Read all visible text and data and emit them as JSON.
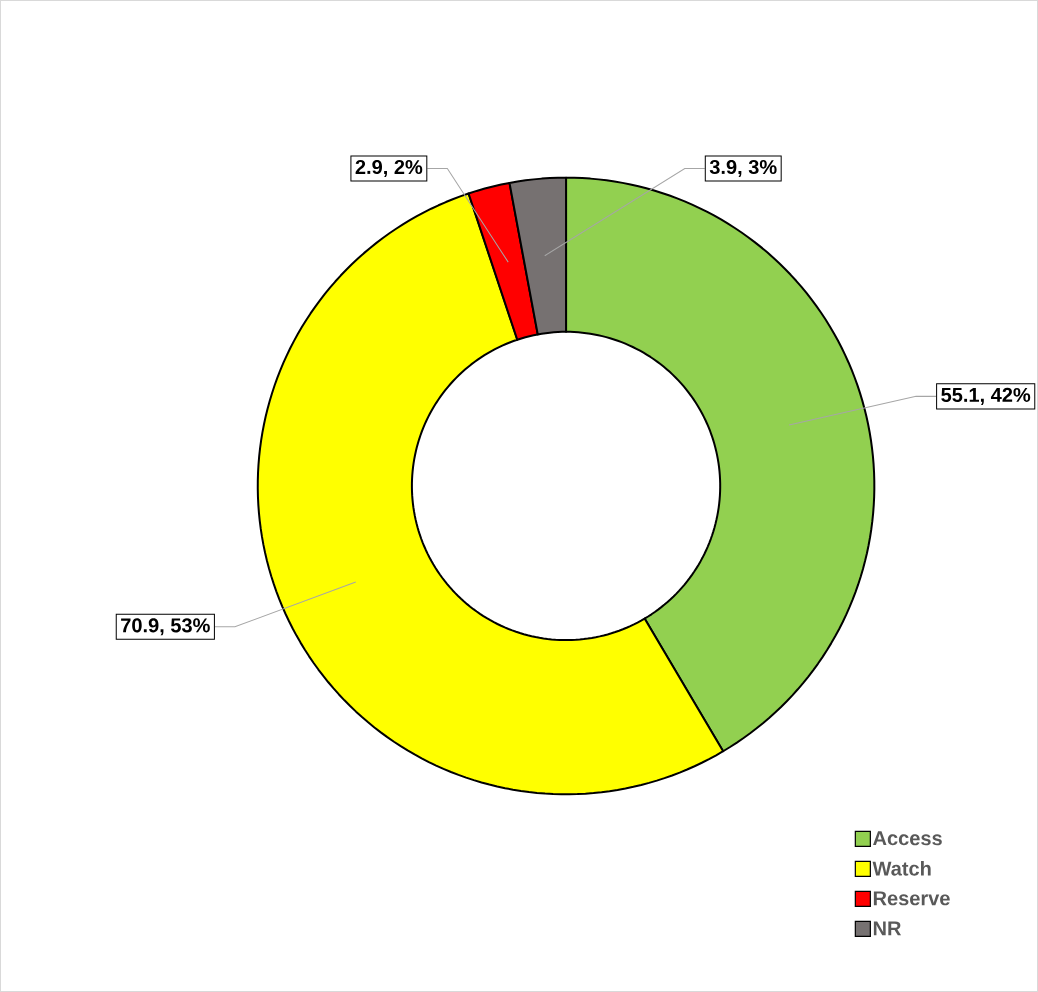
{
  "chart_data": {
    "type": "donut",
    "categories": [
      "Access",
      "Watch",
      "Reserve",
      "NR"
    ],
    "values": [
      55.1,
      70.9,
      2.9,
      3.9
    ],
    "colors": [
      "#92d050",
      "#ffff00",
      "#ff0000",
      "#767171"
    ],
    "value_labels": [
      "55.1, 42%",
      "70.9, 53%",
      "2.9, 2%",
      "3.9, 3%"
    ],
    "legend": "bottom right"
  }
}
